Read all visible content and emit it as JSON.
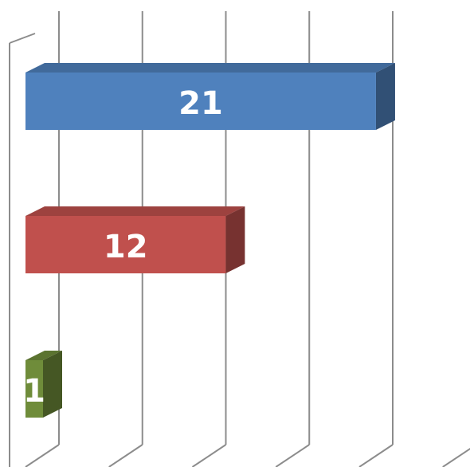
{
  "chart_data": {
    "type": "bar",
    "orientation": "horizontal",
    "three_d": true,
    "categories": [
      "",
      "",
      ""
    ],
    "values": [
      21,
      12,
      1
    ],
    "data_labels": [
      "21",
      "12",
      "1"
    ],
    "colors": [
      "#4f81bd",
      "#c0504d",
      "#6f8c3a"
    ],
    "xlim": [
      0,
      25
    ],
    "grid": true,
    "title": "",
    "xlabel": "",
    "ylabel": ""
  }
}
